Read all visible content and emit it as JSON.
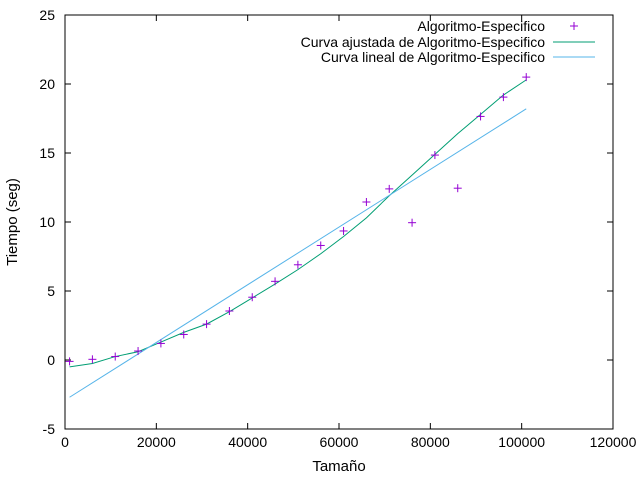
{
  "chart_data": {
    "type": "scatter",
    "title": "",
    "xlabel": "Tamaño",
    "ylabel": "Tiempo (seg)",
    "xlim": [
      0,
      120000
    ],
    "ylim": [
      -5,
      25
    ],
    "x_ticks": [
      0,
      20000,
      40000,
      60000,
      80000,
      100000,
      120000
    ],
    "y_ticks": [
      -5,
      0,
      5,
      10,
      15,
      20,
      25
    ],
    "x_tick_labels": [
      "0",
      "20000",
      "40000",
      "60000",
      "80000",
      "100000",
      "120000"
    ],
    "y_tick_labels": [
      "-5",
      "0",
      "5",
      "10",
      "15",
      "20",
      "25"
    ],
    "grid": false,
    "legend_position": "top-right",
    "series": [
      {
        "name": "Algoritmo-Especifico",
        "kind": "points",
        "marker": "plus",
        "color": "#9400D3",
        "x": [
          1000,
          6000,
          11000,
          16000,
          21000,
          26000,
          31000,
          36000,
          41000,
          46000,
          51000,
          56000,
          61000,
          66000,
          71000,
          76000,
          81000,
          86000,
          91000,
          96000,
          101000
        ],
        "y": [
          -0.1,
          0.05,
          0.25,
          0.65,
          1.2,
          1.85,
          2.6,
          3.55,
          4.55,
          5.7,
          6.9,
          8.3,
          9.35,
          11.45,
          12.4,
          9.95,
          14.85,
          12.45,
          17.65,
          19.05,
          20.5
        ]
      },
      {
        "name": "Curva ajustada de Algoritmo-Especifico",
        "kind": "line",
        "color": "#009E73",
        "x": [
          1000,
          6000,
          11000,
          16000,
          21000,
          26000,
          31000,
          36000,
          41000,
          46000,
          51000,
          56000,
          61000,
          66000,
          71000,
          76000,
          81000,
          86000,
          91000,
          96000,
          101000
        ],
        "y": [
          -0.5,
          -0.25,
          0.25,
          0.6,
          1.3,
          2.0,
          2.6,
          3.5,
          4.5,
          5.5,
          6.55,
          7.7,
          8.95,
          10.3,
          11.9,
          13.4,
          14.9,
          16.4,
          17.8,
          19.2,
          20.3
        ]
      },
      {
        "name": "Curva lineal de Algoritmo-Especifico",
        "kind": "line",
        "color": "#56B4E9",
        "x": [
          1000,
          101000
        ],
        "y": [
          -2.7,
          18.2
        ]
      }
    ]
  }
}
